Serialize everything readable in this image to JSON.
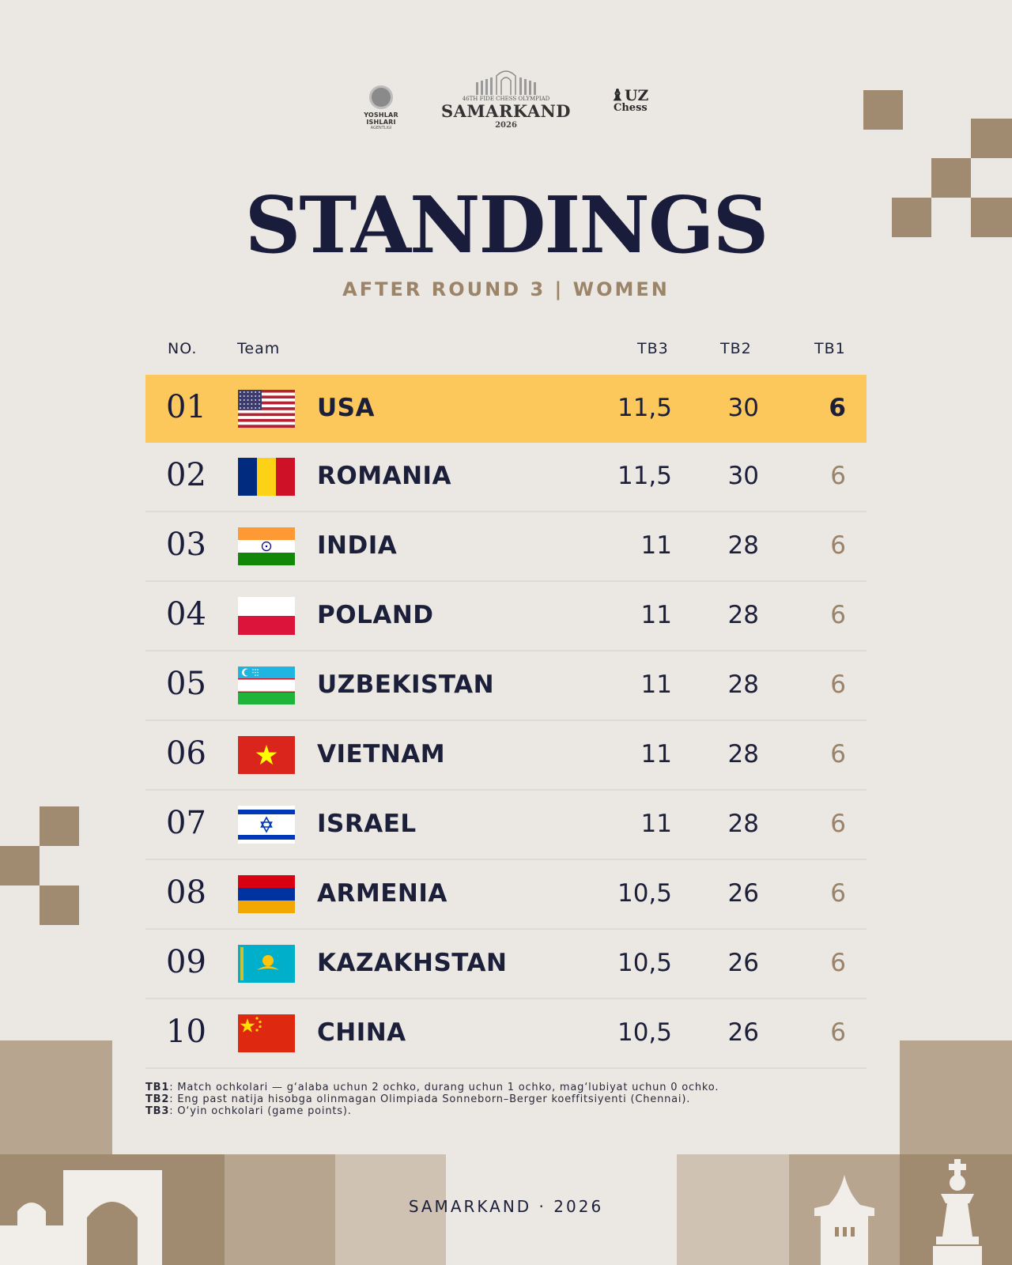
{
  "logos": {
    "left_line1": "YOSHLAR ISHLARI",
    "left_line2": "AGENTLIGI",
    "center_small": "46TH FIDE CHESS OLYMPIAD",
    "center_city": "SAMARKAND",
    "center_year": "2026",
    "right_uz": "UZ",
    "right_chess": "Chess"
  },
  "title": "STANDINGS",
  "subtitle": "AFTER ROUND 3 | WOMEN",
  "headers": {
    "no": "NO.",
    "team": "Team",
    "tb3": "TB3",
    "tb2": "TB2",
    "tb1": "TB1"
  },
  "rows": [
    {
      "no": "01",
      "team": "USA",
      "flag": "usa-flag-icon",
      "tb3": "11,5",
      "tb2": "30",
      "tb1": "6"
    },
    {
      "no": "02",
      "team": "ROMANIA",
      "flag": "romania-flag-icon",
      "tb3": "11,5",
      "tb2": "30",
      "tb1": "6"
    },
    {
      "no": "03",
      "team": "INDIA",
      "flag": "india-flag-icon",
      "tb3": "11",
      "tb2": "28",
      "tb1": "6"
    },
    {
      "no": "04",
      "team": "POLAND",
      "flag": "poland-flag-icon",
      "tb3": "11",
      "tb2": "28",
      "tb1": "6"
    },
    {
      "no": "05",
      "team": "UZBEKISTAN",
      "flag": "uzbekistan-flag-icon",
      "tb3": "11",
      "tb2": "28",
      "tb1": "6"
    },
    {
      "no": "06",
      "team": "VIETNAM",
      "flag": "vietnam-flag-icon",
      "tb3": "11",
      "tb2": "28",
      "tb1": "6"
    },
    {
      "no": "07",
      "team": "ISRAEL",
      "flag": "israel-flag-icon",
      "tb3": "11",
      "tb2": "28",
      "tb1": "6"
    },
    {
      "no": "08",
      "team": "ARMENIA",
      "flag": "armenia-flag-icon",
      "tb3": "10,5",
      "tb2": "26",
      "tb1": "6"
    },
    {
      "no": "09",
      "team": "KAZAKHSTAN",
      "flag": "kazakhstan-flag-icon",
      "tb3": "10,5",
      "tb2": "26",
      "tb1": "6"
    },
    {
      "no": "10",
      "team": "CHINA",
      "flag": "china-flag-icon",
      "tb3": "10,5",
      "tb2": "26",
      "tb1": "6"
    }
  ],
  "notes": [
    {
      "key": "TB1",
      "text": ": Match ochkolari — g‘alaba uchun 2 ochko, durang uchun 1 ochko, mag‘lubiyat uchun 0 ochko."
    },
    {
      "key": "TB2",
      "text": ": Eng past natija hisobga olinmagan Olimpiada Sonneborn–Berger koeffitsiyenti (Chennai)."
    },
    {
      "key": "TB3",
      "text": ": O‘yin ochkolari (game points)."
    }
  ],
  "footer": "SAMARKAND · 2026",
  "colors": {
    "navy": "#1a1c3b",
    "gold": "#9c8468",
    "highlight": "#fcc85c",
    "tan": "#a08a70",
    "background": "#ebe8e3"
  }
}
